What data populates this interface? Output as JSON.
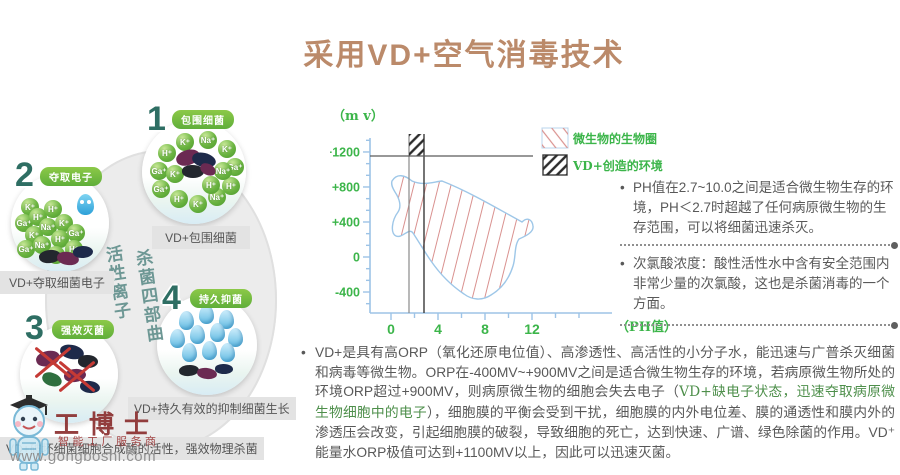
{
  "title": "采用VD+空气消毒技术",
  "diagram": {
    "center_text_col1": "活性离子",
    "center_text_col2": "杀菌四部曲",
    "steps": [
      {
        "num": "1",
        "label": "包围细菌",
        "caption": "VD+包围细菌",
        "ions": [
          "Ga⁺",
          "H⁺",
          "K⁺",
          "Na⁺",
          "K⁺",
          "Ga⁺",
          "H⁺",
          "Na⁺",
          "K⁺",
          "H⁺",
          "Ga⁺",
          "K⁺",
          "H⁺",
          "Na⁺"
        ]
      },
      {
        "num": "2",
        "label": "夺取电子",
        "caption": "VD+夺取细菌电子",
        "ions": [
          "K⁺",
          "Ga⁺",
          "H⁺",
          "H⁺",
          "K⁺",
          "Na⁺",
          "K⁺",
          "Ga⁺",
          "Na⁺",
          "H⁺",
          "Ga⁺",
          "K⁺",
          "H⁺"
        ]
      },
      {
        "num": "3",
        "label": "强效灭菌",
        "caption": "VD+破坏细菌细胞合成酶的活性，强效物理杀菌",
        "ions": []
      },
      {
        "num": "4",
        "label": "持久抑菌",
        "caption": "VD+持久有效的抑制细菌生长",
        "ions": []
      }
    ]
  },
  "chart_data": {
    "type": "area",
    "title": "",
    "ylabel": "（m v）",
    "xlabel": "（PH值）",
    "y_ticks": [
      "+1200",
      "+800",
      "+400",
      "0",
      "-400"
    ],
    "x_ticks": [
      "0",
      "4",
      "8",
      "12"
    ],
    "ylim": [
      -600,
      1400
    ],
    "xlim": [
      0,
      15
    ],
    "grid": false,
    "legend_position": "top-right",
    "legend": [
      {
        "label": "微生物的生物圈",
        "hatch": "red-diagonal"
      },
      {
        "label": "VD+创造的环境",
        "hatch": "black-diagonal"
      }
    ],
    "series": [
      {
        "name": "微生物的生物圈",
        "shape": "closed-region",
        "boundary_ph_mv": [
          [
            0.3,
            750
          ],
          [
            1,
            840
          ],
          [
            4,
            830
          ],
          [
            6,
            700
          ],
          [
            8,
            560
          ],
          [
            10,
            450
          ],
          [
            12.2,
            390
          ],
          [
            11.5,
            150
          ],
          [
            10,
            -150
          ],
          [
            8.5,
            -480
          ],
          [
            7,
            -300
          ],
          [
            5,
            -60
          ],
          [
            3.5,
            150
          ],
          [
            2,
            350
          ],
          [
            1,
            500
          ],
          [
            0.6,
            600
          ]
        ]
      },
      {
        "name": "VD+创造的环境",
        "shape": "vertical-band",
        "ph_range": [
          1.6,
          2.7
        ],
        "mv_above": 1100
      }
    ],
    "hline_mv": 1100
  },
  "right_panel": {
    "bullets": [
      "PH值在2.7~10.0之间是适合微生物生存的环境，PH＜2.7时超越了任何病原微生物的生存范围，可以将细菌迅速杀灭。",
      "次氯酸浓度：酸性活性水中含有安全范围内非常少量的次氯酸，这也是杀菌消毒的一个方面。"
    ]
  },
  "bottom_paragraph": {
    "seg1": "VD+是具有高ORP（氧化还原电位值）、高渗透性、高活性的小分子水，能迅速与广普杀灭细菌和病毒等微生物。ORP在-400MV~+900MV之间是适合微生物生存的环境，若病原微生物所处的环境ORP超过+900MV，则病原微生物的细胞会失去电子（",
    "seg2_green": "VD+缺电子状态，迅速夺取病原微生物细胞中的电子",
    "seg3": "），细胞膜的平衡会受到干扰，细胞膜的内外电位差、膜的通透性和膜内外的渗透压会改变，引起细胞膜的破裂，导致细胞的死亡，达到快速、广谱、绿色除菌的作用。VD⁺能量水ORP极值可达到+1100MV以上，因此可以迅速灭菌。"
  },
  "watermark": {
    "brand": "工博士",
    "slogan": "智能工厂服务商",
    "url": "www.gongboshi.com"
  },
  "colors": {
    "title": "#bb8a6a",
    "chart_green": "#3cb54a",
    "axis_blue": "#9dc3e6",
    "red_hatch": "#d9918f",
    "body_text": "#595959",
    "green_serif": "#4e8f4b"
  }
}
